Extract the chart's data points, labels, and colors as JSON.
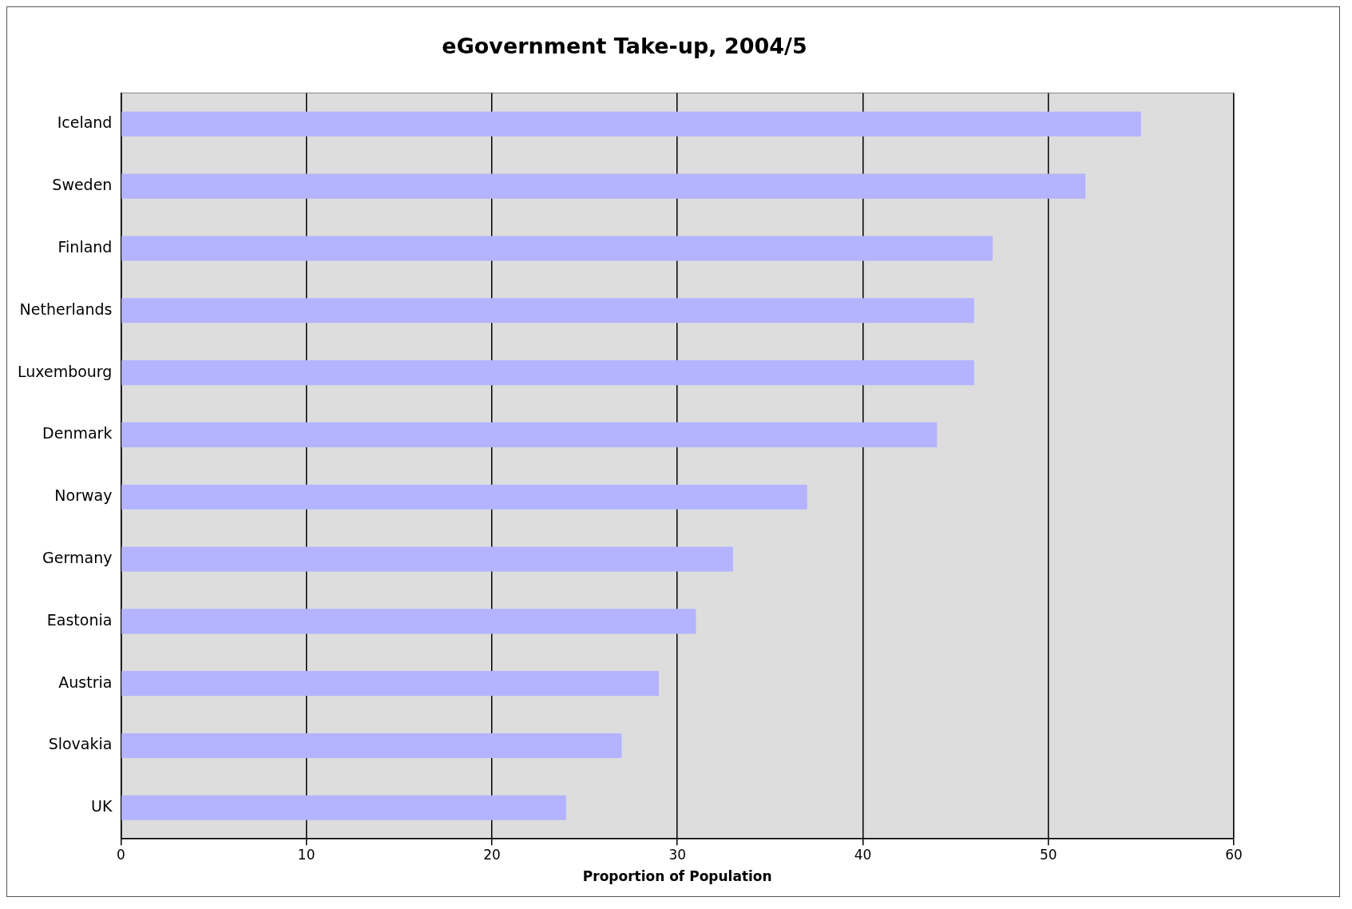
{
  "chart_data": {
    "type": "bar",
    "orientation": "horizontal",
    "title": "eGovernment Take-up, 2004/5",
    "xlabel": "Proportion of Population",
    "categories": [
      "Iceland",
      "Sweden",
      "Finland",
      "Netherlands",
      "Luxembourg",
      "Denmark",
      "Norway",
      "Germany",
      "Eastonia",
      "Austria",
      "Slovakia",
      "UK"
    ],
    "values": [
      55,
      52,
      47,
      46,
      46,
      44,
      37,
      33,
      31,
      29,
      27,
      24
    ],
    "color": "#b3b3ff",
    "xlim": [
      0,
      60
    ],
    "xticks": [
      0,
      10,
      20,
      30,
      40,
      50,
      60
    ],
    "grid": "x",
    "legend": false
  }
}
